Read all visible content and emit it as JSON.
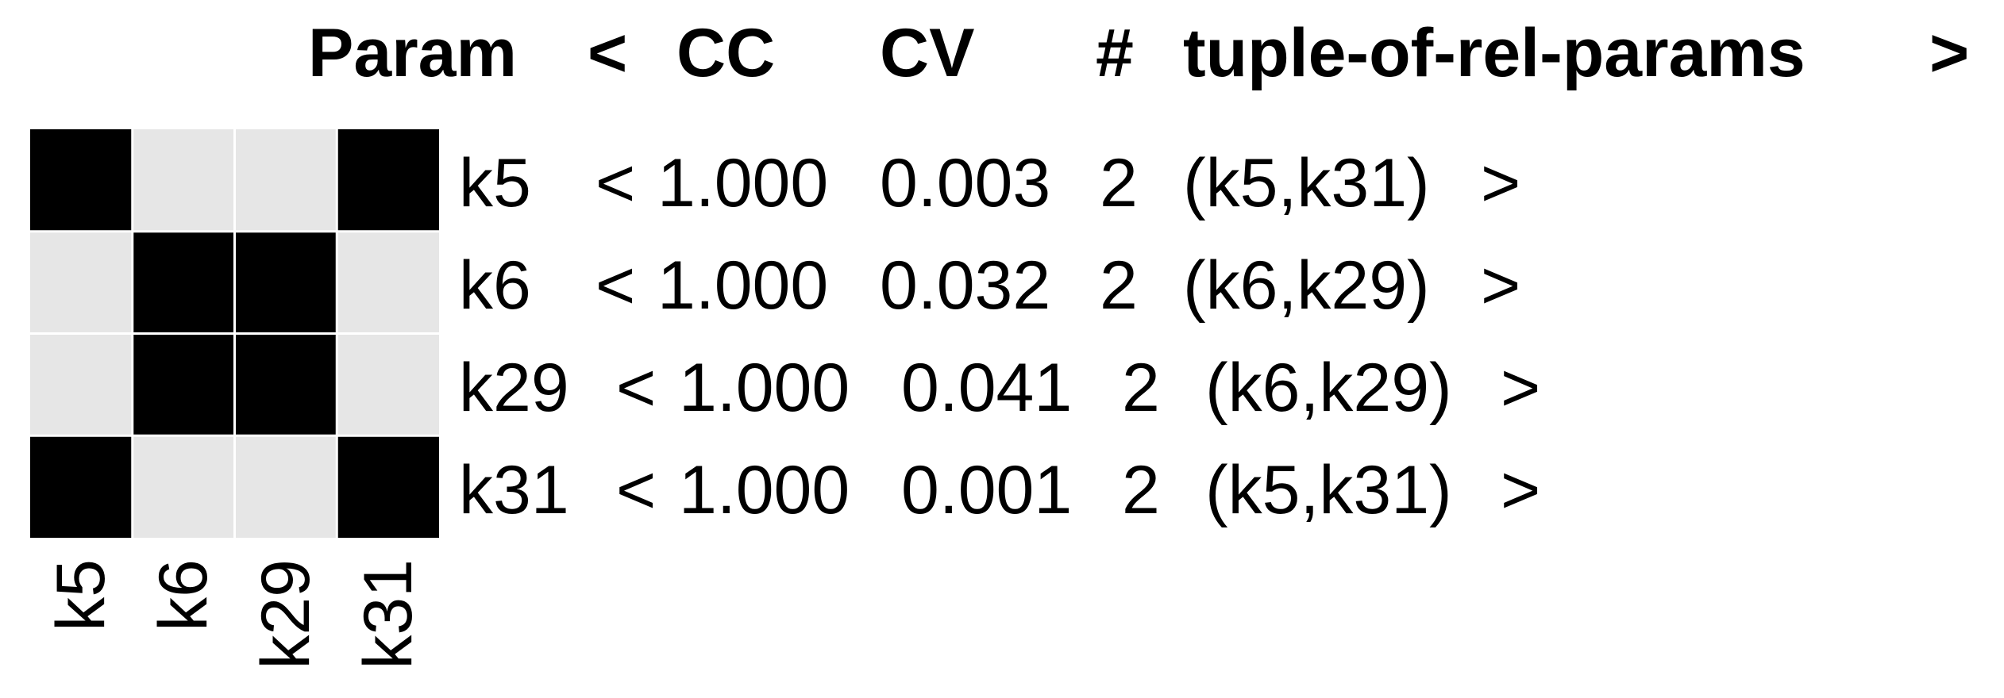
{
  "chart_data": {
    "type": "heatmap",
    "headers": {
      "param": "Param",
      "open": "<",
      "cc": "CC",
      "cv": "CV",
      "count": "#",
      "tuple": "tuple-of-rel-params",
      "close": ">"
    },
    "params": [
      "k5",
      "k6",
      "k29",
      "k31"
    ],
    "matrix": [
      [
        1,
        0,
        0,
        1
      ],
      [
        0,
        1,
        1,
        0
      ],
      [
        0,
        1,
        1,
        0
      ],
      [
        1,
        0,
        0,
        1
      ]
    ],
    "rows": [
      {
        "param": "k5",
        "open": "<",
        "cc": "1.000",
        "cv": "0.003",
        "count": "2",
        "tuple": "(k5,k31)",
        "close": ">"
      },
      {
        "param": "k6",
        "open": "<",
        "cc": "1.000",
        "cv": "0.032",
        "count": "2",
        "tuple": "(k6,k29)",
        "close": ">"
      },
      {
        "param": "k29",
        "open": "<",
        "cc": "1.000",
        "cv": "0.041",
        "count": "2",
        "tuple": "(k6,k29)",
        "close": ">"
      },
      {
        "param": "k31",
        "open": "<",
        "cc": "1.000",
        "cv": "0.001",
        "count": "2",
        "tuple": "(k5,k31)",
        "close": ">"
      }
    ],
    "colors": {
      "on": "#000000",
      "off": "#e6e6e6",
      "grid": "#ffffff"
    }
  }
}
